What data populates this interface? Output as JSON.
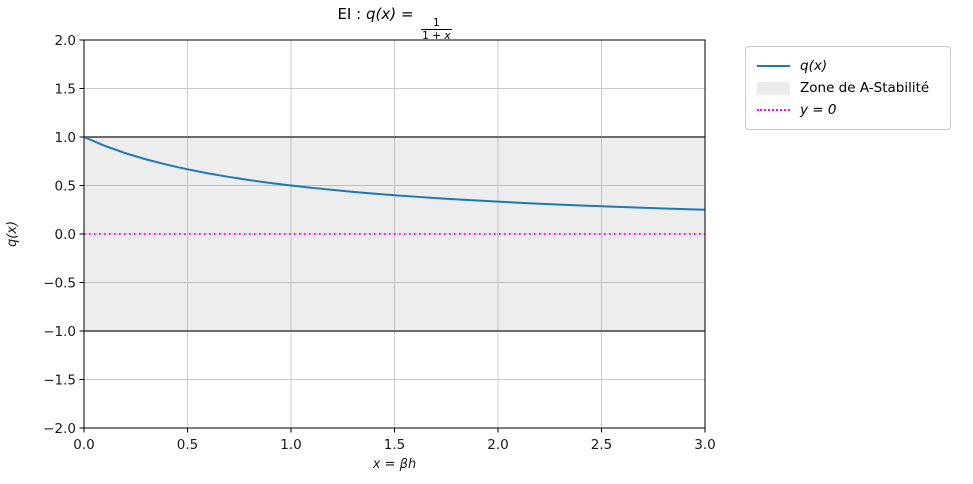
{
  "title": {
    "prefix": "EI : ",
    "func": "q(x)",
    "equals": " = ",
    "frac_num": "1",
    "frac_den_pre": "1 + ",
    "frac_den_var": "x"
  },
  "axes": {
    "xlabel": "x = βh",
    "ylabel": "q(x)"
  },
  "legend": {
    "items": [
      {
        "label": "q(x)",
        "swatch": "line",
        "color": "#1f77b4"
      },
      {
        "label": "Zone de A-Stabilité",
        "swatch": "patch",
        "color": "#ececec"
      },
      {
        "label": "y = 0",
        "swatch": "dotted",
        "color": "#ff00ff"
      }
    ]
  },
  "chart_data": {
    "type": "line",
    "title": "EI : q(x) = 1/(1+x)",
    "xlabel": "x = βh",
    "ylabel": "q(x)",
    "xlim": [
      0.0,
      3.0
    ],
    "ylim": [
      -2.0,
      2.0
    ],
    "grid": true,
    "grid_color": "#c9c9c9",
    "legend_position": "upper-right-outside",
    "xticks": [
      0.0,
      0.5,
      1.0,
      1.5,
      2.0,
      2.5,
      3.0
    ],
    "xtick_labels": [
      "0.0",
      "0.5",
      "1.0",
      "1.5",
      "2.0",
      "2.5",
      "3.0"
    ],
    "yticks": [
      2.0,
      1.5,
      1.0,
      0.5,
      0.0,
      -0.5,
      -1.0,
      -1.5,
      -2.0
    ],
    "ytick_labels": [
      "2.0",
      "1.5",
      "1.0",
      "0.5",
      "0.0",
      "−0.5",
      "−1.0",
      "−1.5",
      "−2.0"
    ],
    "series": [
      {
        "name": "q(x)",
        "color": "#1f77b4",
        "x": [
          0.0,
          0.1,
          0.2,
          0.3,
          0.4,
          0.5,
          0.6,
          0.7,
          0.8,
          0.9,
          1.0,
          1.1,
          1.2,
          1.3,
          1.4,
          1.5,
          1.6,
          1.7,
          1.8,
          1.9,
          2.0,
          2.1,
          2.2,
          2.3,
          2.4,
          2.5,
          2.6,
          2.7,
          2.8,
          2.9,
          3.0
        ],
        "y": [
          1.0,
          0.9091,
          0.8333,
          0.7692,
          0.7143,
          0.6667,
          0.625,
          0.5882,
          0.5556,
          0.5263,
          0.5,
          0.4762,
          0.4545,
          0.4348,
          0.4167,
          0.4,
          0.3846,
          0.3704,
          0.3571,
          0.3448,
          0.3333,
          0.3226,
          0.3125,
          0.303,
          0.2941,
          0.2857,
          0.2778,
          0.2703,
          0.2632,
          0.2564,
          0.25
        ]
      }
    ],
    "stability_band": {
      "label": "Zone de A-Stabilité",
      "y_from": -1.0,
      "y_to": 1.0,
      "fill": "rgba(128,128,128,0.14)"
    },
    "boundary_lines": [
      {
        "y": 1.0,
        "color": "#58585a"
      },
      {
        "y": -1.0,
        "color": "#58585a"
      }
    ],
    "zero_line": {
      "label": "y = 0",
      "y": 0.0,
      "color": "#ff00ff",
      "style": "dotted"
    }
  }
}
